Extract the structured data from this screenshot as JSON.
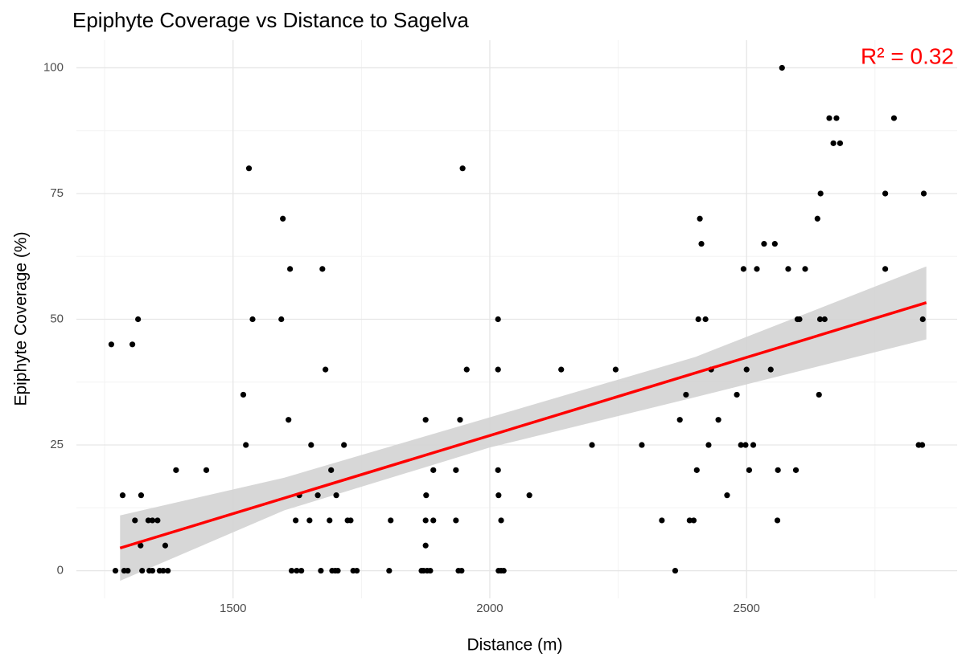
{
  "chart_data": {
    "type": "scatter",
    "title": "Epiphyte Coverage vs Distance to Sagelva",
    "x_label": "Distance (m)",
    "y_label": "Epiphyte Coverage (%)",
    "annotation": "R² = 0.32",
    "annotation_color": "#ff0000",
    "xlim": [
      1195,
      2910
    ],
    "ylim": [
      -5.5,
      105.5
    ],
    "xticks": [
      1500,
      2000,
      2500
    ],
    "yticks": [
      0,
      25,
      50,
      75,
      100
    ],
    "xminor": [
      1250,
      1750,
      2250,
      2750
    ],
    "yminor": [
      12.5,
      37.5,
      62.5,
      87.5
    ],
    "grid": true,
    "color": "#000000",
    "x": [
      1263,
      1271,
      1285,
      1288,
      1295,
      1304,
      1309,
      1315,
      1320,
      1321,
      1323,
      1335,
      1337,
      1343,
      1343,
      1353,
      1357,
      1364,
      1368,
      1373,
      1389,
      1448,
      1520,
      1525,
      1531,
      1538,
      1594,
      1597,
      1608,
      1611,
      1614,
      1622,
      1624,
      1629,
      1633,
      1649,
      1652,
      1665,
      1671,
      1674,
      1680,
      1688,
      1691,
      1693,
      1699,
      1701,
      1704,
      1716,
      1723,
      1729,
      1734,
      1741,
      1804,
      1807,
      1867,
      1871,
      1875,
      1875,
      1875,
      1876,
      1878,
      1884,
      1890,
      1890,
      1947,
      1955,
      1939,
      1945,
      1942,
      1934,
      1934,
      2016,
      2016,
      2016,
      2017,
      2017,
      2022,
      2022,
      2027,
      2077,
      2139,
      2199,
      2245,
      2296,
      2335,
      2361,
      2370,
      2382,
      2389,
      2397,
      2403,
      2406,
      2409,
      2412,
      2420,
      2426,
      2431,
      2445,
      2462,
      2481,
      2489,
      2494,
      2498,
      2500,
      2505,
      2513,
      2520,
      2534,
      2547,
      2555,
      2560,
      2561,
      2569,
      2581,
      2596,
      2599,
      2603,
      2614,
      2638,
      2641,
      2643,
      2644,
      2652,
      2661,
      2669,
      2675,
      2682,
      2770,
      2770,
      2787,
      2835,
      2842,
      2845,
      2843
    ],
    "values": [
      45,
      0,
      15,
      0,
      0,
      45,
      10,
      50,
      5,
      15,
      0,
      10,
      0,
      0,
      10,
      10,
      0,
      0,
      5,
      0,
      20,
      20,
      35,
      25,
      80,
      50,
      50,
      70,
      30,
      60,
      0,
      10,
      0,
      15,
      0,
      10,
      25,
      15,
      0,
      60,
      40,
      10,
      20,
      0,
      0,
      15,
      0,
      25,
      10,
      10,
      0,
      0,
      0,
      10,
      0,
      0,
      30,
      5,
      10,
      15,
      0,
      0,
      10,
      20,
      80,
      40,
      0,
      0,
      30,
      20,
      10,
      50,
      40,
      20,
      15,
      0,
      0,
      10,
      0,
      15,
      40,
      25,
      40,
      25,
      10,
      0,
      30,
      35,
      10,
      10,
      20,
      50,
      70,
      65,
      50,
      25,
      40,
      30,
      15,
      35,
      25,
      60,
      25,
      40,
      20,
      25,
      60,
      65,
      40,
      65,
      10,
      20,
      100,
      60,
      20,
      50,
      50,
      60,
      70,
      35,
      50,
      75,
      50,
      90,
      85,
      90,
      85,
      75,
      60,
      90,
      25,
      25,
      75,
      50
    ],
    "fit": {
      "color": "#ff0000",
      "x": [
        1280,
        2850
      ],
      "y": [
        4.5,
        53.3
      ]
    },
    "band": {
      "color": "#d3d3d3",
      "x": [
        1280,
        1600,
        2000,
        2400,
        2850
      ],
      "lower": [
        -2,
        12,
        24.5,
        34.5,
        46
      ],
      "upper": [
        11,
        18.5,
        30.5,
        42.5,
        60.5
      ]
    }
  }
}
